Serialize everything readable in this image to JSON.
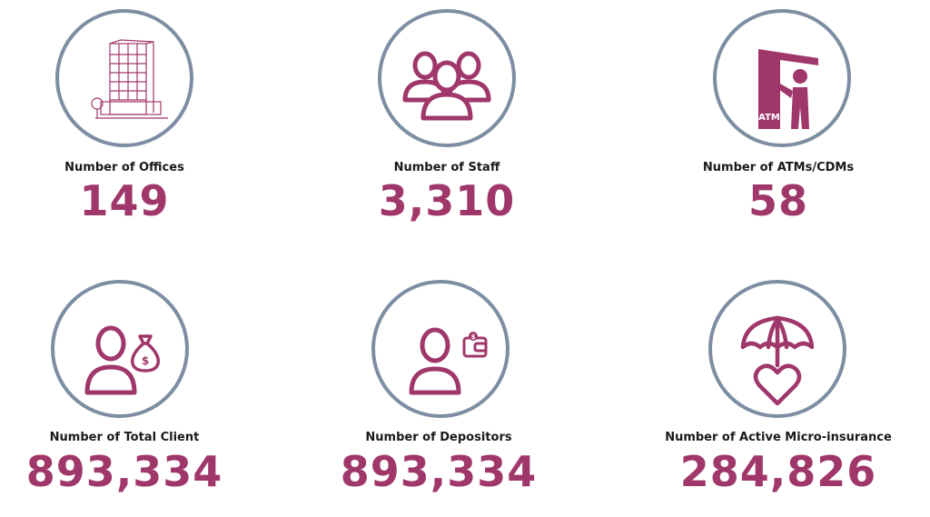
{
  "colors": {
    "accent": "#a0376b",
    "ring": "#7d8ea3",
    "label": "#1a1a1a"
  },
  "stats": [
    {
      "icon": "office-building-icon",
      "label": "Number of Offices",
      "value": "149"
    },
    {
      "icon": "staff-group-icon",
      "label": "Number of Staff",
      "value": "3,310"
    },
    {
      "icon": "atm-icon",
      "icon_text": "ATM",
      "label": "Number of ATMs/CDMs",
      "value": "58"
    },
    {
      "icon": "client-money-bag-icon",
      "icon_text": "$",
      "label": "Number of Total Client",
      "value": "893,334"
    },
    {
      "icon": "depositor-wallet-icon",
      "icon_text": "$",
      "label": "Number of Depositors",
      "value": "893,334"
    },
    {
      "icon": "umbrella-heart-icon",
      "label": "Number of Active Micro-insurance",
      "value": "284,826"
    }
  ]
}
